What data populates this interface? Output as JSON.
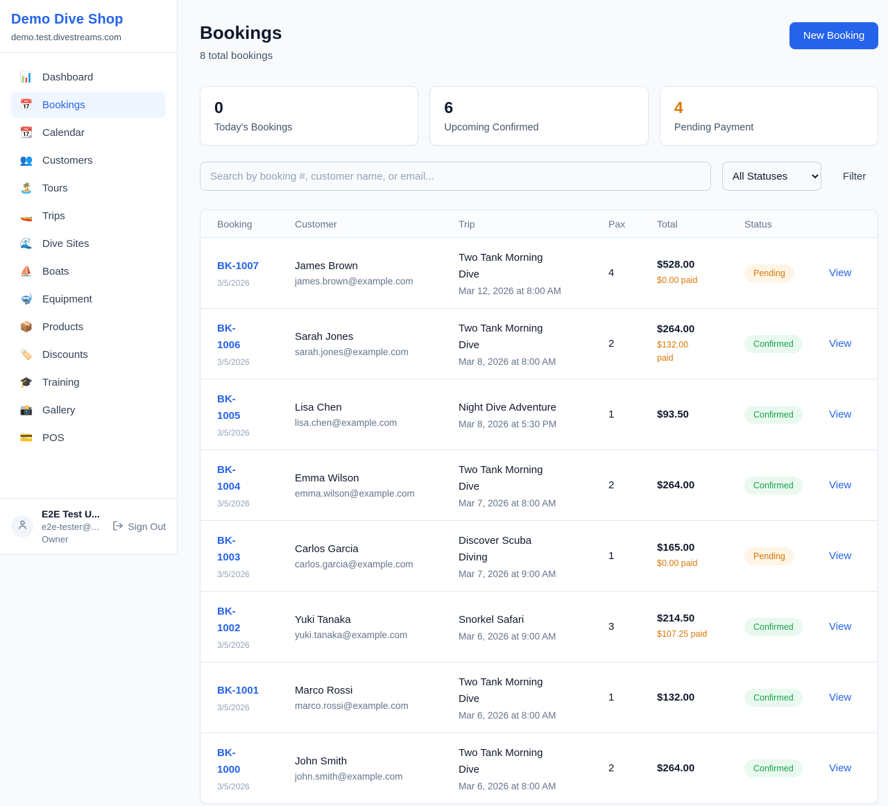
{
  "sidebar": {
    "brand": "Demo Dive Shop",
    "domain": "demo.test.divestreams.com",
    "items": [
      {
        "icon": "📊",
        "label": "Dashboard",
        "active": false
      },
      {
        "icon": "📅",
        "label": "Bookings",
        "active": true
      },
      {
        "icon": "📆",
        "label": "Calendar",
        "active": false
      },
      {
        "icon": "👥",
        "label": "Customers",
        "active": false
      },
      {
        "icon": "🏝️",
        "label": "Tours",
        "active": false
      },
      {
        "icon": "🚤",
        "label": "Trips",
        "active": false
      },
      {
        "icon": "🌊",
        "label": "Dive Sites",
        "active": false
      },
      {
        "icon": "⛵",
        "label": "Boats",
        "active": false
      },
      {
        "icon": "🤿",
        "label": "Equipment",
        "active": false
      },
      {
        "icon": "📦",
        "label": "Products",
        "active": false
      },
      {
        "icon": "🏷️",
        "label": "Discounts",
        "active": false
      },
      {
        "icon": "🎓",
        "label": "Training",
        "active": false
      },
      {
        "icon": "📸",
        "label": "Gallery",
        "active": false
      },
      {
        "icon": "💳",
        "label": "POS",
        "active": false
      }
    ],
    "user": {
      "name": "E2E Test U...",
      "email": "e2e-tester@...",
      "role": "Owner",
      "signout_label": "Sign Out"
    }
  },
  "header": {
    "title": "Bookings",
    "subtitle": "8 total bookings",
    "new_booking_label": "New Booking"
  },
  "stats": [
    {
      "value": "0",
      "label": "Today's Bookings",
      "accent": false
    },
    {
      "value": "6",
      "label": "Upcoming Confirmed",
      "accent": false
    },
    {
      "value": "4",
      "label": "Pending Payment",
      "accent": true
    }
  ],
  "filters": {
    "search_placeholder": "Search by booking #, customer name, or email...",
    "status_selected": "All Statuses",
    "filter_label": "Filter"
  },
  "colors": {
    "accent_blue": "#2563eb",
    "pending_text": "#d97706",
    "pending_bg": "#fef5e6",
    "confirmed_text": "#16a34a",
    "confirmed_bg": "#e9f9ef"
  },
  "table": {
    "columns": [
      "Booking",
      "Customer",
      "Trip",
      "Pax",
      "Total",
      "Status"
    ],
    "rows": [
      {
        "id": [
          "BK-1007"
        ],
        "booked_date": "3/5/2026",
        "customer_name": "James Brown",
        "customer_email": "james.brown@example.com",
        "trip_name": [
          "Two Tank Morning",
          "Dive"
        ],
        "trip_datetime": "Mar 12, 2026 at 8:00 AM",
        "pax": "4",
        "total": "$528.00",
        "paid": [
          "$0.00 paid"
        ],
        "status": "Pending",
        "action": "View"
      },
      {
        "id": [
          "BK-",
          "1006"
        ],
        "booked_date": "3/5/2026",
        "customer_name": "Sarah Jones",
        "customer_email": "sarah.jones@example.com",
        "trip_name": [
          "Two Tank Morning",
          "Dive"
        ],
        "trip_datetime": "Mar 8, 2026 at 8:00 AM",
        "pax": "2",
        "total": "$264.00",
        "paid": [
          "$132.00",
          "paid"
        ],
        "status": "Confirmed",
        "action": "View"
      },
      {
        "id": [
          "BK-",
          "1005"
        ],
        "booked_date": "3/5/2026",
        "customer_name": "Lisa Chen",
        "customer_email": "lisa.chen@example.com",
        "trip_name": [
          "Night Dive Adventure"
        ],
        "trip_datetime": "Mar 8, 2026 at 5:30 PM",
        "pax": "1",
        "total": "$93.50",
        "paid": [],
        "status": "Confirmed",
        "action": "View"
      },
      {
        "id": [
          "BK-",
          "1004"
        ],
        "booked_date": "3/5/2026",
        "customer_name": "Emma Wilson",
        "customer_email": "emma.wilson@example.com",
        "trip_name": [
          "Two Tank Morning",
          "Dive"
        ],
        "trip_datetime": "Mar 7, 2026 at 8:00 AM",
        "pax": "2",
        "total": "$264.00",
        "paid": [],
        "status": "Confirmed",
        "action": "View"
      },
      {
        "id": [
          "BK-",
          "1003"
        ],
        "booked_date": "3/5/2026",
        "customer_name": "Carlos Garcia",
        "customer_email": "carlos.garcia@example.com",
        "trip_name": [
          "Discover Scuba",
          "Diving"
        ],
        "trip_datetime": "Mar 7, 2026 at 9:00 AM",
        "pax": "1",
        "total": "$165.00",
        "paid": [
          "$0.00 paid"
        ],
        "status": "Pending",
        "action": "View"
      },
      {
        "id": [
          "BK-",
          "1002"
        ],
        "booked_date": "3/5/2026",
        "customer_name": "Yuki Tanaka",
        "customer_email": "yuki.tanaka@example.com",
        "trip_name": [
          "Snorkel Safari"
        ],
        "trip_datetime": "Mar 6, 2026 at 9:00 AM",
        "pax": "3",
        "total": "$214.50",
        "paid": [
          "$107.25 paid"
        ],
        "status": "Confirmed",
        "action": "View"
      },
      {
        "id": [
          "BK-1001"
        ],
        "booked_date": "3/5/2026",
        "customer_name": "Marco Rossi",
        "customer_email": "marco.rossi@example.com",
        "trip_name": [
          "Two Tank Morning",
          "Dive"
        ],
        "trip_datetime": "Mar 6, 2026 at 8:00 AM",
        "pax": "1",
        "total": "$132.00",
        "paid": [],
        "status": "Confirmed",
        "action": "View"
      },
      {
        "id": [
          "BK-",
          "1000"
        ],
        "booked_date": "3/5/2026",
        "customer_name": "John Smith",
        "customer_email": "john.smith@example.com",
        "trip_name": [
          "Two Tank Morning",
          "Dive"
        ],
        "trip_datetime": "Mar 6, 2026 at 8:00 AM",
        "pax": "2",
        "total": "$264.00",
        "paid": [],
        "status": "Confirmed",
        "action": "View"
      }
    ]
  }
}
